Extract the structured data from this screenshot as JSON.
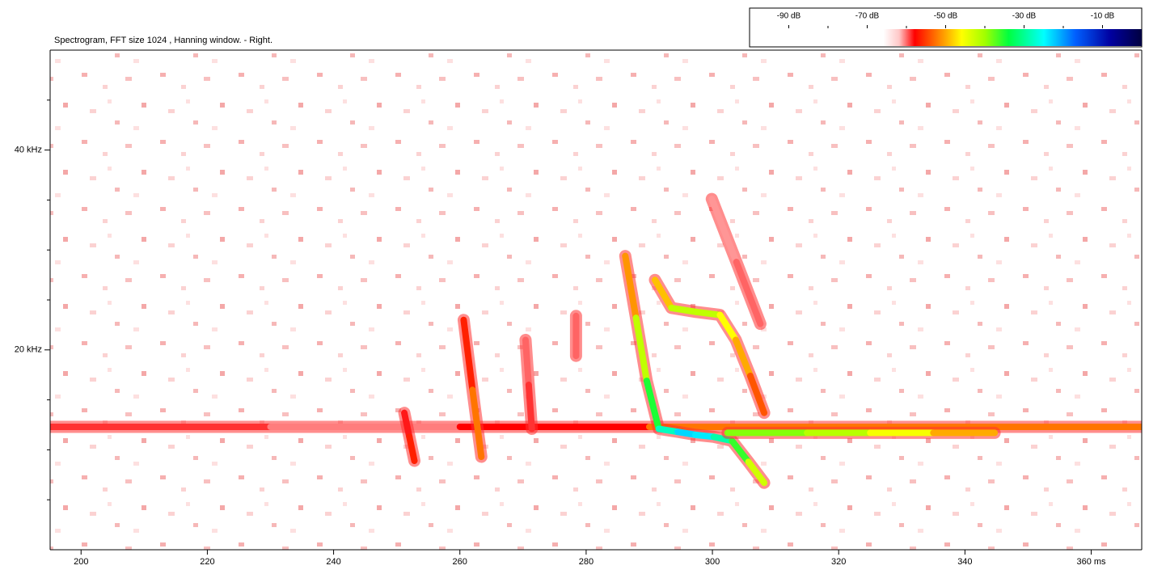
{
  "chart_data": {
    "type": "spectrogram",
    "title": "Spectrogram, FFT size 1024 , Hanning window. - Right.",
    "xlim": [
      195.1,
      368
    ],
    "xticks": [
      200,
      220,
      240,
      260,
      280,
      300,
      320,
      340,
      {
        "value": 360,
        "label": "360 ms"
      }
    ],
    "ylim": [
      0,
      50
    ],
    "yticks": [
      {
        "value": 20,
        "label": "20 kHz"
      },
      {
        "value": 40,
        "label": "40 kHz"
      }
    ],
    "yticks_minor": [
      5,
      10,
      15,
      25,
      30,
      35,
      45
    ],
    "colorbar": {
      "lim": [
        -100,
        0
      ],
      "ticks": [
        {
          "value": -90,
          "label": "-90 dB"
        },
        {
          "value": -70,
          "label": "-70 dB"
        },
        {
          "value": -50,
          "label": "-50 dB"
        },
        {
          "value": -30,
          "label": "-30 dB"
        },
        {
          "value": -10,
          "label": "-10 dB"
        }
      ],
      "ticks_minor": [
        -80,
        -60,
        -40,
        -20
      ],
      "stops": [
        {
          "value": -66,
          "color": "#ffffff"
        },
        {
          "value": -62,
          "color": "#ffc8c8"
        },
        {
          "value": -58,
          "color": "#ff0000"
        },
        {
          "value": -52,
          "color": "#ff8000"
        },
        {
          "value": -46,
          "color": "#ffff00"
        },
        {
          "value": -40,
          "color": "#a0ff00"
        },
        {
          "value": -34,
          "color": "#00ff40"
        },
        {
          "value": -25,
          "color": "#00ffff"
        },
        {
          "value": -17,
          "color": "#0060ff"
        },
        {
          "value": -8,
          "color": "#0000a0"
        },
        {
          "value": 0,
          "color": "#000040"
        }
      ]
    },
    "series": [
      {
        "t": [
          195.1,
          230,
          260,
          290,
          320,
          368
        ],
        "f": [
          12.3,
          12.3,
          12.3,
          12.3,
          12.3,
          12.3
        ],
        "db": [
          -58,
          -60,
          -61,
          -55,
          -50,
          -55
        ]
      },
      {
        "t": [
          251.2,
          252.0,
          252.8
        ],
        "f": [
          13.7,
          11.3,
          8.9
        ],
        "db": [
          -60,
          -57,
          -56
        ]
      },
      {
        "t": [
          260.6,
          262.0,
          263.4
        ],
        "f": [
          23,
          16,
          9.3
        ],
        "db": [
          -58,
          -55,
          -50
        ]
      },
      {
        "t": [
          270.4,
          270.9,
          271.4
        ],
        "f": [
          21,
          16.5,
          12.1
        ],
        "db": [
          -62,
          -58,
          -60
        ]
      },
      {
        "t": [
          278.4,
          278.4
        ],
        "f": [
          23.4,
          19.4
        ],
        "db": [
          -62,
          -58
        ]
      },
      {
        "t": [
          286.2,
          287.9,
          289.6,
          291.5,
          294.5,
          297.3,
          300.2,
          303.1,
          305.7,
          308.2
        ],
        "f": [
          29.4,
          23.2,
          16.9,
          12.1,
          11.8,
          11.5,
          11.3,
          10.9,
          8.8,
          6.7
        ],
        "db": [
          -56,
          -46,
          -38,
          -32,
          -24,
          -22,
          -26,
          -32,
          -40,
          -46
        ]
      },
      {
        "t": [
          290.9,
          293.5,
          297.4,
          301.2,
          303.7,
          306.0,
          308.2
        ],
        "f": [
          27,
          24.2,
          23.8,
          23.5,
          21,
          17.4,
          13.7
        ],
        "db": [
          -54,
          -44,
          -40,
          -44,
          -48,
          -52,
          -56
        ]
      },
      {
        "t": [
          299.9,
          303.8,
          307.6
        ],
        "f": [
          35.1,
          28.8,
          22.6
        ],
        "db": [
          -62,
          -60,
          -60
        ]
      },
      {
        "t": [
          302.4,
          315,
          325,
          335,
          344.7
        ],
        "f": [
          11.7,
          11.7,
          11.7,
          11.7,
          11.7
        ],
        "db": [
          -38,
          -40,
          -43,
          -48,
          -52
        ]
      }
    ]
  }
}
